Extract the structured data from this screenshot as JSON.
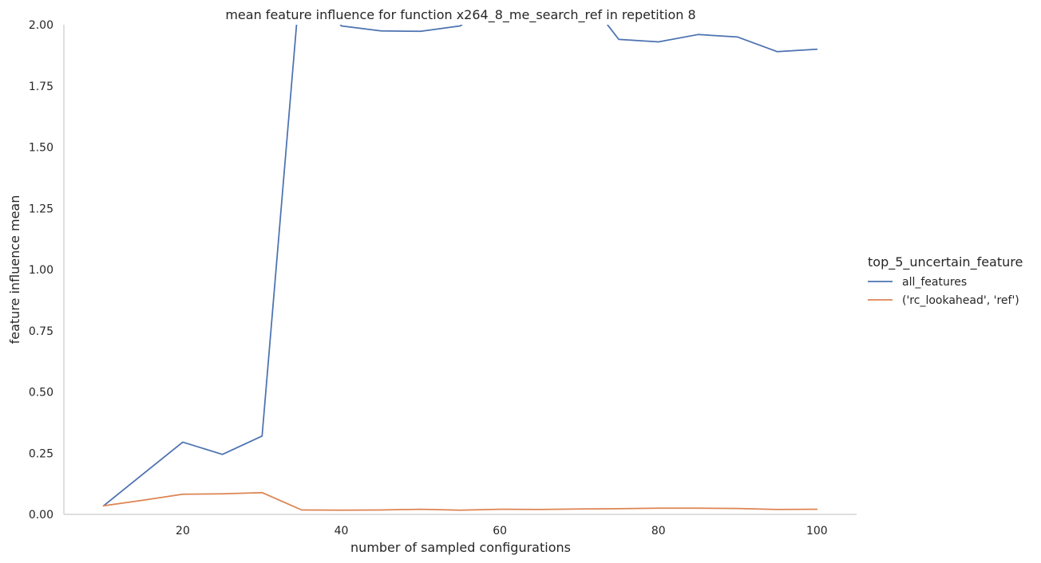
{
  "chart_data": {
    "type": "line",
    "title": "mean feature influence for function x264_8_me_search_ref in repetition 8",
    "xlabel": "number of sampled configurations",
    "ylabel": "feature influence mean",
    "xlim": [
      5,
      105
    ],
    "ylim": [
      0.0,
      2.0
    ],
    "xticks": [
      20,
      40,
      60,
      80,
      100
    ],
    "xtick_labels": [
      "20",
      "40",
      "60",
      "80",
      "100"
    ],
    "yticks": [
      0.0,
      0.25,
      0.5,
      0.75,
      1.0,
      1.25,
      1.5,
      1.75,
      2.0
    ],
    "ytick_labels": [
      "0.00",
      "0.25",
      "0.50",
      "0.75",
      "1.00",
      "1.25",
      "1.50",
      "1.75",
      "2.00"
    ],
    "grid": false,
    "legend": {
      "title": "top_5_uncertain_feature",
      "position": "right"
    },
    "x": [
      10,
      15,
      20,
      25,
      30,
      35,
      40,
      45,
      50,
      55,
      60,
      65,
      70,
      75,
      80,
      85,
      90,
      95,
      100
    ],
    "series": [
      {
        "name": "all_features",
        "color": "#4c72b0",
        "values": [
          0.035,
          0.165,
          0.295,
          0.245,
          0.32,
          2.25,
          1.995,
          1.975,
          1.973,
          1.995,
          2.12,
          2.18,
          2.15,
          1.94,
          1.93,
          1.96,
          1.95,
          1.89,
          1.9
        ]
      },
      {
        "name": "('rc_lookahead', 'ref')",
        "color": "#dd8452",
        "values": [
          0.035,
          0.058,
          0.082,
          0.084,
          0.089,
          0.018,
          0.017,
          0.018,
          0.021,
          0.017,
          0.021,
          0.02,
          0.022,
          0.023,
          0.025,
          0.025,
          0.024,
          0.02,
          0.021
        ]
      }
    ]
  }
}
